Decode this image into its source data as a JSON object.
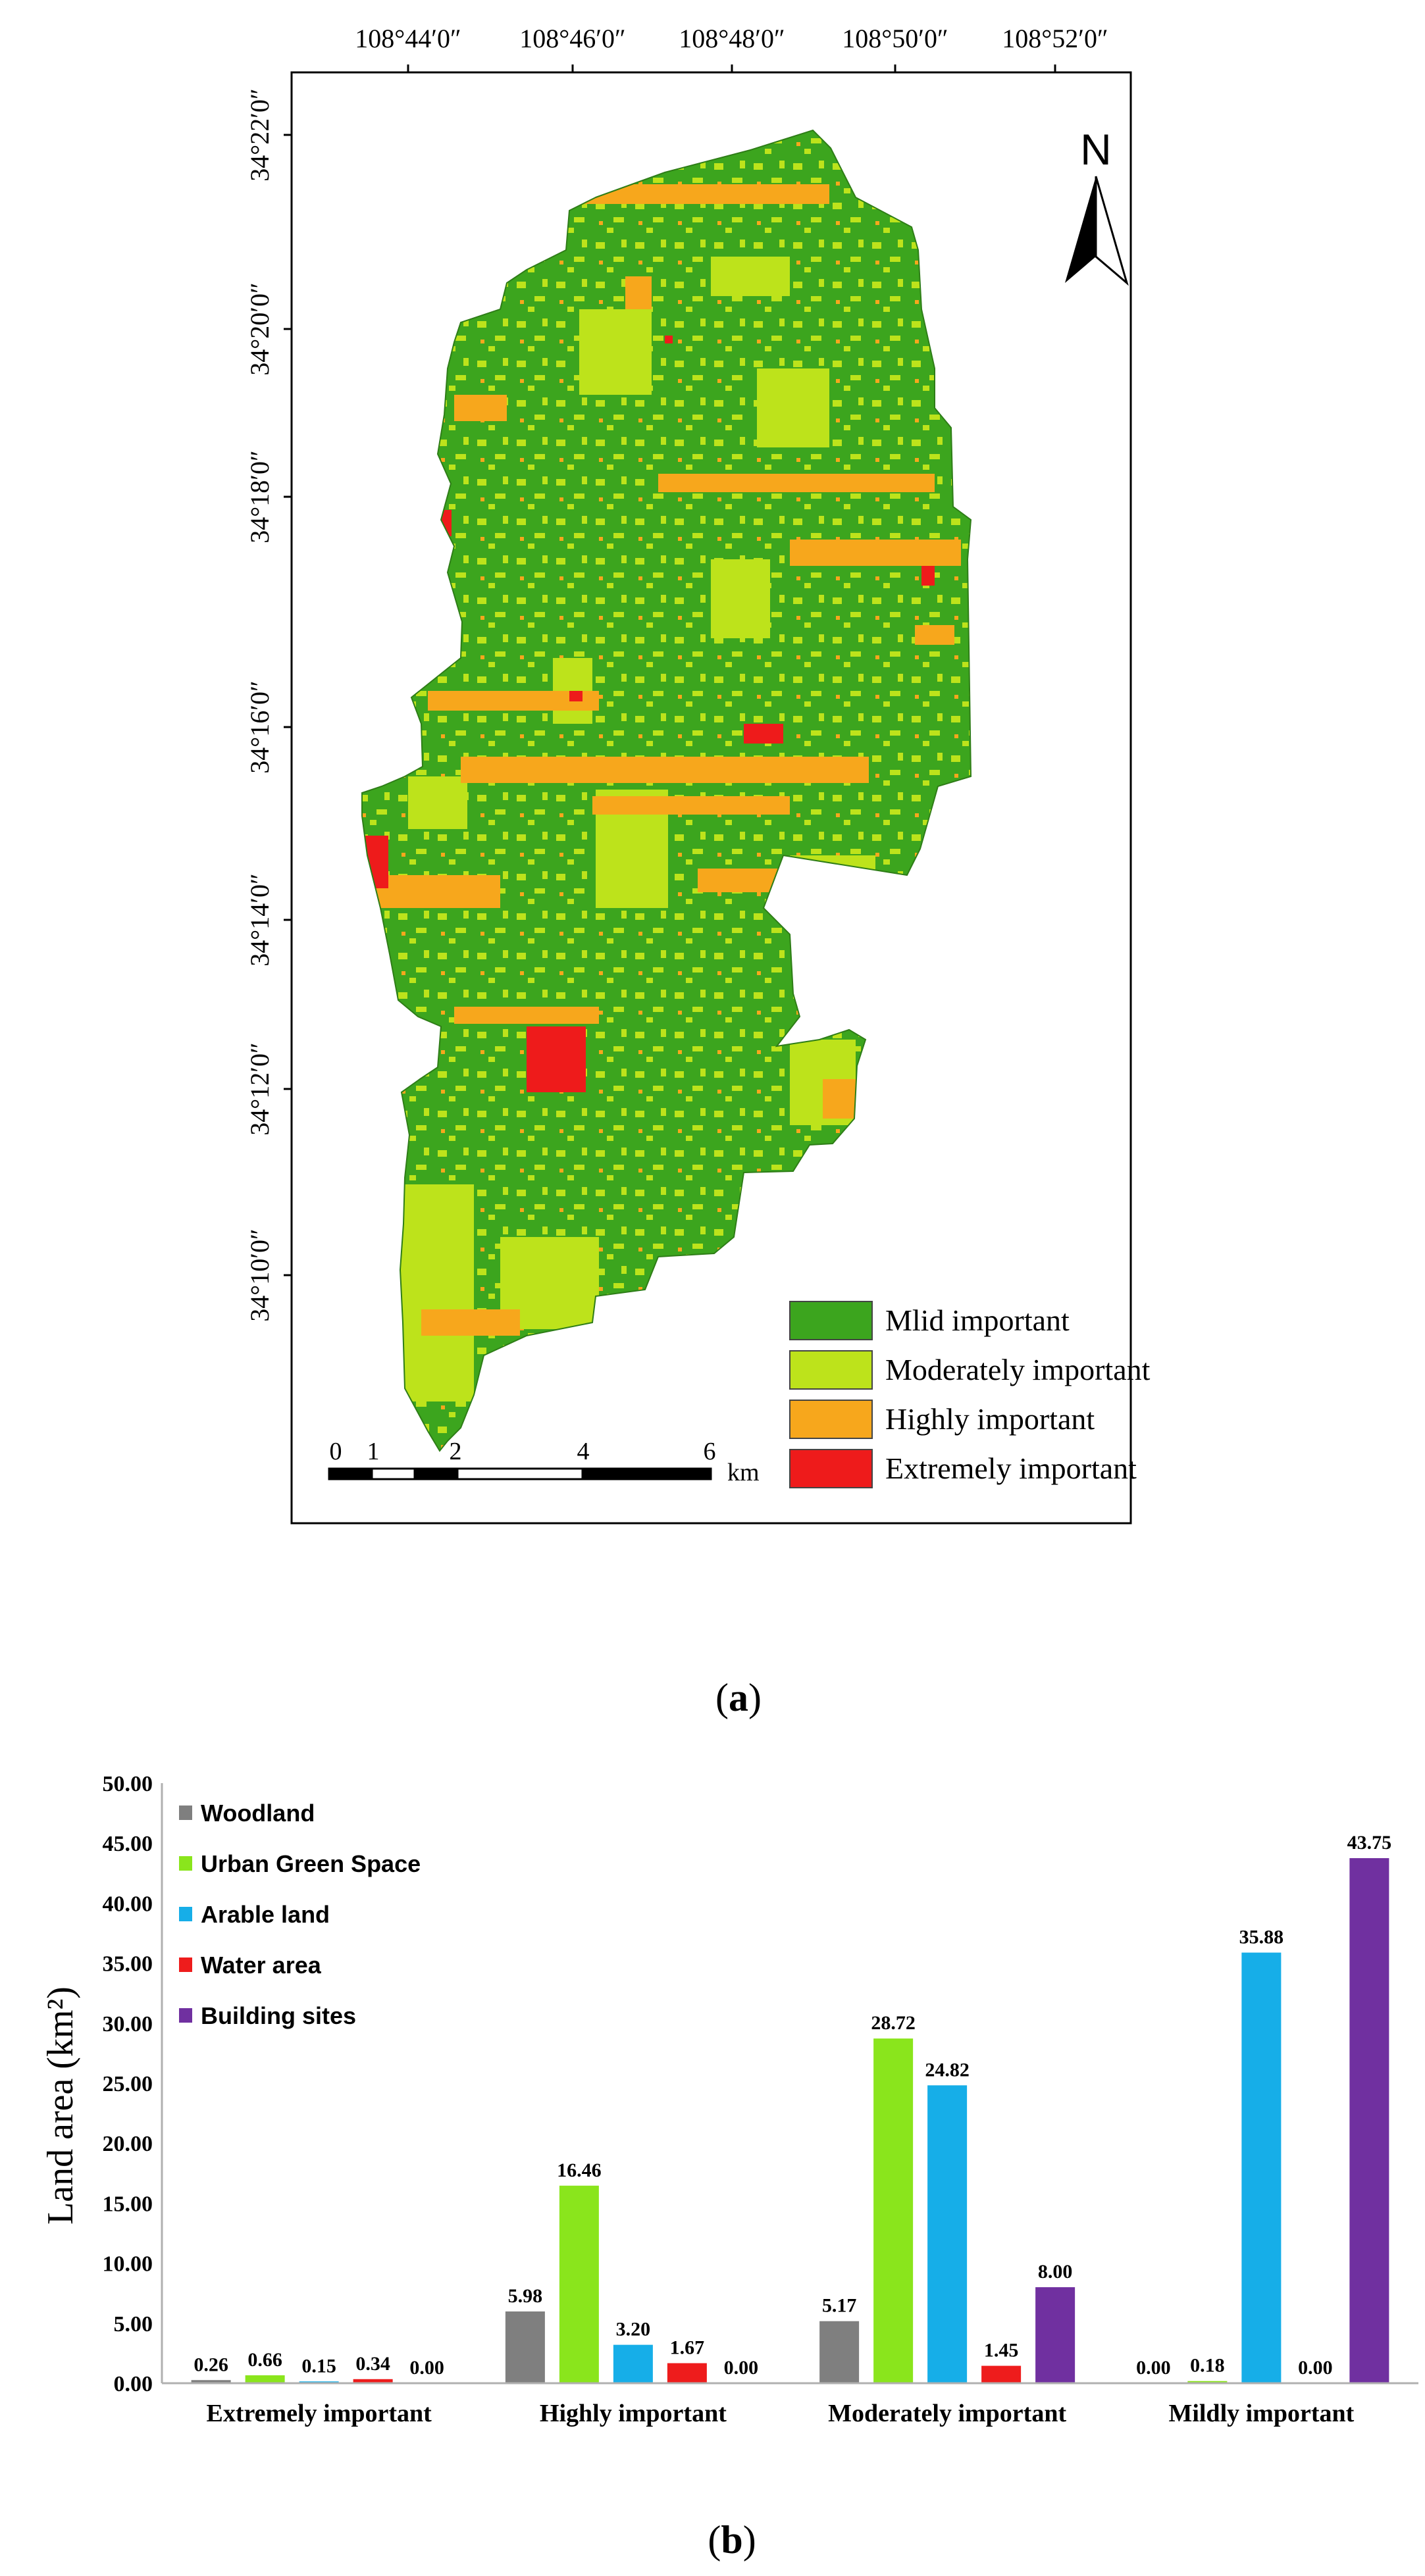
{
  "map_panel": {
    "lon_labels": [
      "108°44′0″",
      "108°46′0″",
      "108°48′0″",
      "108°50′0″",
      "108°52′0″"
    ],
    "lat_labels": [
      "34°22′0″",
      "34°20′0″",
      "34°18′0″",
      "34°16′0″",
      "34°14′0″",
      "34°12′0″",
      "34°10′0″"
    ],
    "north_label": "N",
    "scale_labels": [
      "0",
      "1",
      "2",
      "4",
      "6"
    ],
    "scale_unit": "km",
    "legend": [
      {
        "label": "Mlid important",
        "color": "#3ca51e"
      },
      {
        "label": "Moderately important",
        "color": "#bde31b"
      },
      {
        "label": "Highly important",
        "color": "#f7a71c"
      },
      {
        "label": "Extremely important",
        "color": "#ee1b1b"
      }
    ],
    "caption": "(a)",
    "caption_bold": "a"
  },
  "chart_data": {
    "type": "bar",
    "categories": [
      "Extremely important",
      "Highly important",
      "Moderately important",
      "Mildly important"
    ],
    "series": [
      {
        "name": "Woodland",
        "color": "#7f7f7f",
        "values": [
          0.26,
          5.98,
          5.17,
          0.0
        ]
      },
      {
        "name": "Urban Green Space",
        "color": "#8ae51c",
        "values": [
          0.66,
          16.46,
          28.72,
          0.18
        ]
      },
      {
        "name": "Arable land",
        "color": "#16aee8",
        "values": [
          0.15,
          3.2,
          24.82,
          35.88
        ]
      },
      {
        "name": "Water area",
        "color": "#ee1c1c",
        "values": [
          0.34,
          1.67,
          1.45,
          0.0
        ]
      },
      {
        "name": "Building sites",
        "color": "#7030a0",
        "values": [
          0.0,
          0.0,
          8.0,
          43.75
        ]
      }
    ],
    "value_labels": [
      [
        "0.26",
        "5.98",
        "5.17",
        "0.00"
      ],
      [
        "0.66",
        "16.46",
        "28.72",
        "0.18"
      ],
      [
        "0.15",
        "3.20",
        "24.82",
        "35.88"
      ],
      [
        "0.34",
        "1.67",
        "1.45",
        "0.00"
      ],
      [
        "0.00",
        "0.00",
        "8.00",
        "43.75"
      ]
    ],
    "y_ticks": [
      "0.00",
      "5.00",
      "10.00",
      "15.00",
      "20.00",
      "25.00",
      "30.00",
      "35.00",
      "40.00",
      "45.00",
      "50.00"
    ],
    "ylim": [
      0,
      50
    ],
    "ylabel": "Land area",
    "ylabel_unit": "(km²)",
    "legend_position": "top-left",
    "grid": false,
    "caption": "(b)",
    "caption_bold": "b"
  }
}
